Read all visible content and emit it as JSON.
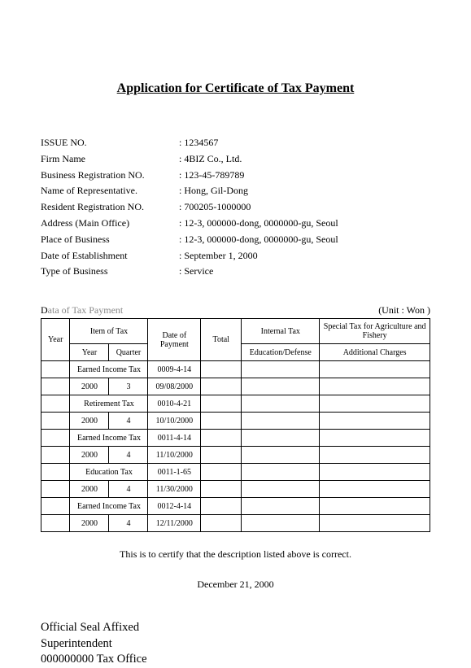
{
  "title": "Application for Certificate of Tax Payment",
  "info": [
    {
      "label": "ISSUE NO.",
      "value": "1234567"
    },
    {
      "label": "Firm Name",
      "value": "4BIZ Co., Ltd."
    },
    {
      "label": "Business Registration NO.",
      "value": "123-45-789789"
    },
    {
      "label": "Name of Representative.",
      "value": "Hong, Gil-Dong"
    },
    {
      "label": "Resident Registration NO.",
      "value": "700205-1000000"
    },
    {
      "label": "Address (Main Office)",
      "value": "12-3, 000000-dong, 0000000-gu, Seoul"
    },
    {
      "label": "Place of Business",
      "value": "12-3, 000000-dong, 0000000-gu, Seoul"
    },
    {
      "label": "Date of Establishment",
      "value": "September 1, 2000"
    },
    {
      "label": "Type of Business",
      "value": "Service"
    }
  ],
  "table": {
    "section_label_first": "D",
    "section_label_rest": "ata of Tax Payment",
    "unit": "(Unit : Won )",
    "headers": {
      "year": "Year",
      "item": "Item of Tax",
      "sub_year": "Year",
      "sub_quarter": "Quarter",
      "date": "Date of Payment",
      "total": "Total",
      "internal": "Internal Tax",
      "edu_def": "Education/Defense",
      "special": "Special Tax for Agriculture and Fishery",
      "additional": "Additional Charges"
    },
    "rows": [
      {
        "item": "Earned Income Tax",
        "code": "0009-4-14",
        "year": "2000",
        "quarter": "3",
        "date": "09/08/2000"
      },
      {
        "item": "Retirement Tax",
        "code": "0010-4-21",
        "year": "2000",
        "quarter": "4",
        "date": "10/10/2000"
      },
      {
        "item": "Earned Income Tax",
        "code": "0011-4-14",
        "year": "2000",
        "quarter": "4",
        "date": "11/10/2000"
      },
      {
        "item": "Education Tax",
        "code": "0011-1-65",
        "year": "2000",
        "quarter": "4",
        "date": "11/30/2000"
      },
      {
        "item": "Earned Income Tax",
        "code": "0012-4-14",
        "year": "2000",
        "quarter": "4",
        "date": "12/11/2000"
      }
    ]
  },
  "certify": "This is to certify that the description listed above is correct.",
  "cert_date": "December 21, 2000",
  "signature": {
    "line1": "Official Seal Affixed",
    "line2": "Superintendent",
    "line3": "000000000 Tax Office"
  }
}
